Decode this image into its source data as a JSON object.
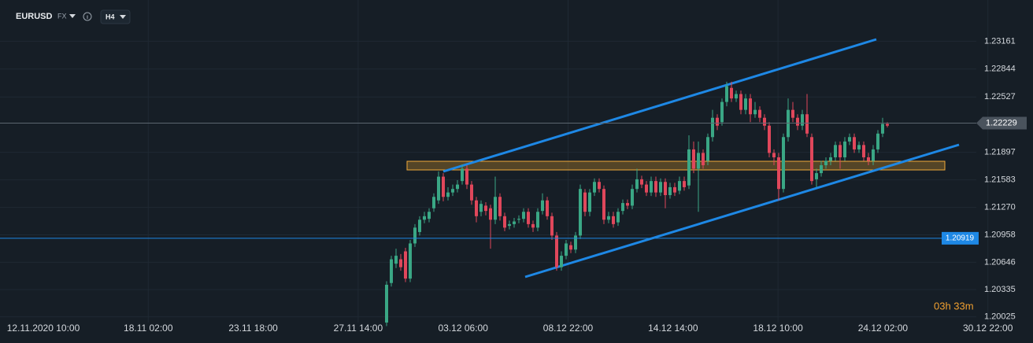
{
  "chart_data": {
    "type": "candlestick",
    "symbol": "EURUSD",
    "market": "FX",
    "timeframe": "H4",
    "ylim": [
      1.1996,
      1.2363
    ],
    "yticks": [
      1.23161,
      1.22844,
      1.22527,
      1.21897,
      1.21583,
      {
        "value": 1.2127,
        "label": "1.21270"
      },
      1.20958,
      1.20646,
      1.20335,
      1.20025
    ],
    "xtick_labels": [
      "12.11.2020 10:00",
      "18.11 02:00",
      "23.11 18:00",
      "27.11 14:00",
      "03.12 06:00",
      "08.12 22:00",
      "14.12 14:00",
      "18.12 10:00",
      "24.12 02:00",
      "30.12 22:00"
    ],
    "current_price": 1.22229,
    "level_line": 1.20919,
    "timer": "03h 33m",
    "up_color": "#3aa785",
    "down_color": "#e0475b",
    "ohlc": [
      [
        1.1996,
        1.2043,
        1.1992,
        1.2039
      ],
      [
        1.2041,
        1.2072,
        1.2037,
        1.2068
      ],
      [
        1.2063,
        1.208,
        1.2058,
        1.2072
      ],
      [
        1.2068,
        1.2074,
        1.2055,
        1.2059
      ],
      [
        1.2077,
        1.2081,
        1.2042,
        1.2046
      ],
      [
        1.2046,
        1.209,
        1.2042,
        1.2086
      ],
      [
        1.2086,
        1.2108,
        1.2082,
        1.2104
      ],
      [
        1.2099,
        1.2117,
        1.2095,
        1.2113
      ],
      [
        1.2113,
        1.2122,
        1.2109,
        1.2117
      ],
      [
        1.2114,
        1.2126,
        1.211,
        1.2122
      ],
      [
        1.2126,
        1.2143,
        1.2122,
        1.2139
      ],
      [
        1.2135,
        1.2168,
        1.2131,
        1.2162
      ],
      [
        1.2162,
        1.2166,
        1.2134,
        1.2139
      ],
      [
        1.2139,
        1.215,
        1.2135,
        1.2144
      ],
      [
        1.2144,
        1.2153,
        1.214,
        1.2148
      ],
      [
        1.2148,
        1.2158,
        1.2144,
        1.2153
      ],
      [
        1.2157,
        1.2176,
        1.2153,
        1.2171
      ],
      [
        1.2171,
        1.2175,
        1.2148,
        1.2153
      ],
      [
        1.2153,
        1.2157,
        1.213,
        1.2135
      ],
      [
        1.2135,
        1.2139,
        1.211,
        1.2117
      ],
      [
        1.2122,
        1.2135,
        1.2117,
        1.2131
      ],
      [
        1.2129,
        1.2133,
        1.2118,
        1.2123
      ],
      [
        1.2126,
        1.213,
        1.208,
        1.2113
      ],
      [
        1.2113,
        1.2162,
        1.2108,
        1.2139
      ],
      [
        1.2139,
        1.2143,
        1.2112,
        1.2117
      ],
      [
        1.2117,
        1.2121,
        1.21,
        1.2104
      ],
      [
        1.2106,
        1.2112,
        1.2102,
        1.2108
      ],
      [
        1.2108,
        1.2115,
        1.2104,
        1.2111
      ],
      [
        1.2113,
        1.2118,
        1.2109,
        1.2114
      ],
      [
        1.2114,
        1.2126,
        1.211,
        1.2122
      ],
      [
        1.2122,
        1.2126,
        1.2104,
        1.2108
      ],
      [
        1.2108,
        1.2112,
        1.2099,
        1.2104
      ],
      [
        1.2104,
        1.2126,
        1.21,
        1.2122
      ],
      [
        1.2123,
        1.2143,
        1.2119,
        1.2135
      ],
      [
        1.2135,
        1.2139,
        1.2113,
        1.2117
      ],
      [
        1.2117,
        1.2121,
        1.209,
        1.2095
      ],
      [
        1.2095,
        1.2099,
        1.2055,
        1.2059
      ],
      [
        1.2059,
        1.2077,
        1.2055,
        1.2072
      ],
      [
        1.2072,
        1.209,
        1.2068,
        1.2086
      ],
      [
        1.2084,
        1.2088,
        1.2075,
        1.2079
      ],
      [
        1.2079,
        1.2099,
        1.2075,
        1.2095
      ],
      [
        1.2095,
        1.2153,
        1.2091,
        1.2148
      ],
      [
        1.2144,
        1.2148,
        1.2117,
        1.2122
      ],
      [
        1.2122,
        1.2148,
        1.2117,
        1.2144
      ],
      [
        1.2144,
        1.216,
        1.214,
        1.2156
      ],
      [
        1.2156,
        1.216,
        1.2144,
        1.2148
      ],
      [
        1.2148,
        1.2152,
        1.2108,
        1.2113
      ],
      [
        1.2113,
        1.2122,
        1.2109,
        1.2117
      ],
      [
        1.2117,
        1.2122,
        1.2104,
        1.2108
      ],
      [
        1.211,
        1.2126,
        1.2106,
        1.2122
      ],
      [
        1.2123,
        1.2136,
        1.2119,
        1.2132
      ],
      [
        1.2132,
        1.2136,
        1.2125,
        1.2129
      ],
      [
        1.2129,
        1.2153,
        1.2125,
        1.2148
      ],
      [
        1.2148,
        1.2171,
        1.2144,
        1.2159
      ],
      [
        1.2159,
        1.2163,
        1.2149,
        1.2153
      ],
      [
        1.2153,
        1.2157,
        1.214,
        1.2144
      ],
      [
        1.2144,
        1.2162,
        1.214,
        1.2157
      ],
      [
        1.2157,
        1.2162,
        1.2139,
        1.2144
      ],
      [
        1.2144,
        1.216,
        1.214,
        1.2156
      ],
      [
        1.2156,
        1.216,
        1.2126,
        1.2141
      ],
      [
        1.2141,
        1.2155,
        1.2137,
        1.215
      ],
      [
        1.215,
        1.2155,
        1.214,
        1.2144
      ],
      [
        1.2146,
        1.2162,
        1.2142,
        1.2157
      ],
      [
        1.2157,
        1.2162,
        1.2146,
        1.215
      ],
      [
        1.2152,
        1.2209,
        1.2148,
        1.2193
      ],
      [
        1.2193,
        1.2202,
        1.2166,
        1.2171
      ],
      [
        1.2171,
        1.2202,
        1.2122,
        1.2189
      ],
      [
        1.2189,
        1.2193,
        1.2171,
        1.2175
      ],
      [
        1.218,
        1.2211,
        1.2175,
        1.2207
      ],
      [
        1.2207,
        1.2238,
        1.2202,
        1.2229
      ],
      [
        1.2229,
        1.2233,
        1.2215,
        1.222
      ],
      [
        1.2224,
        1.2251,
        1.222,
        1.2247
      ],
      [
        1.2247,
        1.227,
        1.2242,
        1.2265
      ],
      [
        1.2263,
        1.227,
        1.2247,
        1.2251
      ],
      [
        1.2251,
        1.226,
        1.2247,
        1.2256
      ],
      [
        1.2256,
        1.226,
        1.2233,
        1.2238
      ],
      [
        1.2238,
        1.2256,
        1.2233,
        1.2251
      ],
      [
        1.2251,
        1.2256,
        1.2224,
        1.2233
      ],
      [
        1.2233,
        1.2247,
        1.2229,
        1.2238
      ],
      [
        1.2238,
        1.2242,
        1.2224,
        1.2229
      ],
      [
        1.2229,
        1.2233,
        1.2215,
        1.222
      ],
      [
        1.222,
        1.2224,
        1.2184,
        1.2189
      ],
      [
        1.2189,
        1.2193,
        1.2175,
        1.2184
      ],
      [
        1.2184,
        1.2189,
        1.2135,
        1.2148
      ],
      [
        1.2148,
        1.2211,
        1.2144,
        1.2207
      ],
      [
        1.2207,
        1.2251,
        1.2202,
        1.2238
      ],
      [
        1.2238,
        1.2247,
        1.2224,
        1.2229
      ],
      [
        1.2229,
        1.2233,
        1.2215,
        1.222
      ],
      [
        1.222,
        1.2238,
        1.2215,
        1.2233
      ],
      [
        1.2233,
        1.2256,
        1.2207,
        1.2211
      ],
      [
        1.2207,
        1.2211,
        1.2153,
        1.2157
      ],
      [
        1.2159,
        1.2171,
        1.215,
        1.2166
      ],
      [
        1.2166,
        1.218,
        1.2162,
        1.2175
      ],
      [
        1.2175,
        1.2184,
        1.2171,
        1.218
      ],
      [
        1.218,
        1.2189,
        1.2175,
        1.2184
      ],
      [
        1.2184,
        1.2202,
        1.218,
        1.2198
      ],
      [
        1.2198,
        1.2202,
        1.2171,
        1.2184
      ],
      [
        1.2184,
        1.2207,
        1.218,
        1.2202
      ],
      [
        1.2202,
        1.2211,
        1.2198,
        1.2207
      ],
      [
        1.2207,
        1.2211,
        1.2189,
        1.2193
      ],
      [
        1.2193,
        1.2202,
        1.2189,
        1.2198
      ],
      [
        1.2198,
        1.2202,
        1.218,
        1.2184
      ],
      [
        1.2184,
        1.2189,
        1.2175,
        1.218
      ],
      [
        1.218,
        1.2198,
        1.2175,
        1.2193
      ],
      [
        1.2193,
        1.2215,
        1.2189,
        1.2211
      ],
      [
        1.2211,
        1.2229,
        1.2207,
        1.2222
      ],
      [
        1.2222,
        1.2224,
        1.2218,
        1.222
      ]
    ]
  }
}
